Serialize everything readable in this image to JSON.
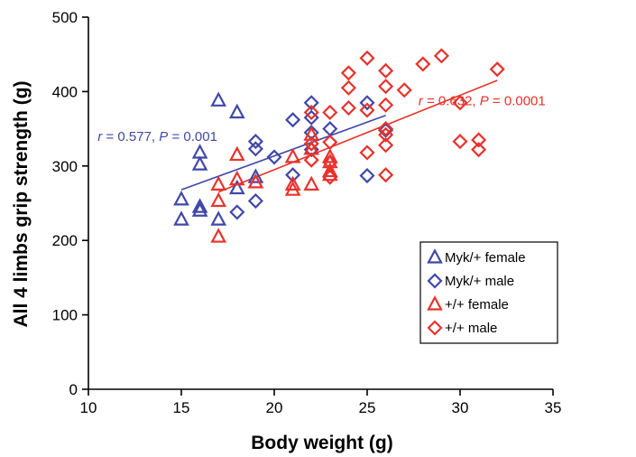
{
  "chart_data": {
    "type": "scatter",
    "xlabel": "Body weight  (g)",
    "ylabel": "All 4 limbs grip strength (g)",
    "xlim": [
      10,
      35
    ],
    "ylim": [
      0,
      500
    ],
    "xticks": [
      10,
      15,
      20,
      25,
      30,
      35
    ],
    "yticks": [
      0,
      100,
      200,
      300,
      400,
      500
    ],
    "grid": false,
    "legend_position": "bottom-right",
    "colors": {
      "myk": "#3f48a8",
      "wt": "#e8322b"
    },
    "series": [
      {
        "name": "Myk/+ female",
        "marker": "triangle",
        "color": "#3f48a8",
        "points": [
          [
            15,
            255
          ],
          [
            15,
            228
          ],
          [
            16,
            318
          ],
          [
            16,
            302
          ],
          [
            16,
            245
          ],
          [
            16,
            240
          ],
          [
            17,
            388
          ],
          [
            17,
            228
          ],
          [
            18,
            372
          ],
          [
            18,
            270
          ],
          [
            19,
            285
          ],
          [
            19,
            278
          ]
        ]
      },
      {
        "name": "Myk/+ male",
        "marker": "diamond",
        "color": "#3f48a8",
        "points": [
          [
            18,
            238
          ],
          [
            19,
            333
          ],
          [
            19,
            323
          ],
          [
            19,
            253
          ],
          [
            20,
            312
          ],
          [
            21,
            362
          ],
          [
            21,
            288
          ],
          [
            22,
            385
          ],
          [
            22,
            365
          ],
          [
            22,
            345
          ],
          [
            22,
            322
          ],
          [
            23,
            350
          ],
          [
            25,
            385
          ],
          [
            25,
            287
          ],
          [
            26,
            348
          ]
        ]
      },
      {
        "name": "+/+ female",
        "marker": "triangle",
        "color": "#e8322b",
        "points": [
          [
            17,
            205
          ],
          [
            17,
            253
          ],
          [
            17,
            275
          ],
          [
            18,
            315
          ],
          [
            18,
            282
          ],
          [
            19,
            278
          ],
          [
            21,
            312
          ],
          [
            21,
            275
          ],
          [
            21,
            268
          ],
          [
            22,
            342
          ],
          [
            22,
            323
          ],
          [
            22,
            275
          ],
          [
            23,
            312
          ],
          [
            23,
            305
          ],
          [
            23,
            293
          ],
          [
            23,
            288
          ]
        ]
      },
      {
        "name": "+/+ male",
        "marker": "diamond",
        "color": "#e8322b",
        "points": [
          [
            22,
            372
          ],
          [
            22,
            330
          ],
          [
            22,
            308
          ],
          [
            23,
            372
          ],
          [
            23,
            332
          ],
          [
            23,
            305
          ],
          [
            23,
            285
          ],
          [
            24,
            425
          ],
          [
            24,
            405
          ],
          [
            24,
            378
          ],
          [
            25,
            445
          ],
          [
            25,
            375
          ],
          [
            25,
            318
          ],
          [
            26,
            428
          ],
          [
            26,
            407
          ],
          [
            26,
            382
          ],
          [
            26,
            350
          ],
          [
            26,
            342
          ],
          [
            26,
            328
          ],
          [
            26,
            288
          ],
          [
            27,
            402
          ],
          [
            28,
            437
          ],
          [
            29,
            448
          ],
          [
            30,
            385
          ],
          [
            30,
            333
          ],
          [
            31,
            335
          ],
          [
            31,
            322
          ],
          [
            32,
            430
          ]
        ]
      }
    ],
    "trendlines": [
      {
        "series": "Myk/+",
        "color": "#3f48a8",
        "from": [
          15,
          268
        ],
        "to": [
          26,
          368
        ]
      },
      {
        "series": "+/+",
        "color": "#e8322b",
        "from": [
          17,
          265
        ],
        "to": [
          32,
          415
        ]
      }
    ],
    "annotations": [
      {
        "r_symbol": "r",
        "text": " = 0.577, ",
        "p_symbol": "P",
        "p_text": " = 0.001",
        "color": "#3f48a8",
        "anchor": [
          10.5,
          340
        ],
        "align": "start"
      },
      {
        "r_symbol": "r",
        "text": " = 0.632, ",
        "p_symbol": "P",
        "p_text": " = 0.0001",
        "color": "#e8322b",
        "anchor": [
          34.6,
          388
        ],
        "align": "end"
      }
    ]
  }
}
